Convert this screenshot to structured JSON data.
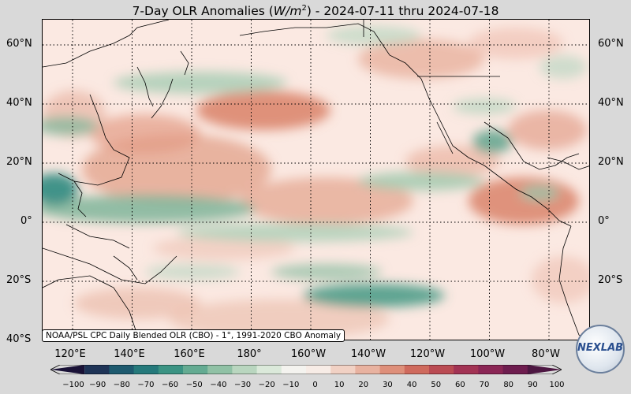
{
  "title": {
    "prefix": "7-Day OLR Anomalies (",
    "unit_var": "W/m",
    "unit_exp": "2",
    "suffix": ") - 2024-07-11 thru 2024-07-18"
  },
  "lat_labels": [
    "60°N",
    "40°N",
    "20°N",
    "0°",
    "20°S",
    "40°S"
  ],
  "lon_labels": [
    "120°E",
    "140°E",
    "160°E",
    "180°",
    "160°W",
    "140°W",
    "120°W",
    "100°W",
    "80°W"
  ],
  "credit": "NOAA/PSL CPC Daily Blended OLR (CBO) - 1°, 1991-2020 CBO Anomaly",
  "colorbar": {
    "ticks": [
      "−100",
      "−90",
      "−80",
      "−70",
      "−60",
      "−50",
      "−40",
      "−30",
      "−20",
      "−10",
      "0",
      "10",
      "20",
      "30",
      "40",
      "50",
      "60",
      "70",
      "80",
      "90",
      "100"
    ],
    "colors": [
      "#1a1237",
      "#1f3457",
      "#1e5a6f",
      "#25797b",
      "#3b9383",
      "#64ab92",
      "#90c1a5",
      "#b9d6bf",
      "#dbe9da",
      "#f4f3ef",
      "#f7ece6",
      "#f1d1c4",
      "#e8b2a0",
      "#de8f7a",
      "#cf6a5d",
      "#ba4b53",
      "#a23354",
      "#8a2655",
      "#6e1d4f",
      "#4d1742"
    ]
  },
  "logo_text": "NEXLAB",
  "colors": {
    "background": "#d9d9d9",
    "map_base": "#fbe9e2"
  }
}
